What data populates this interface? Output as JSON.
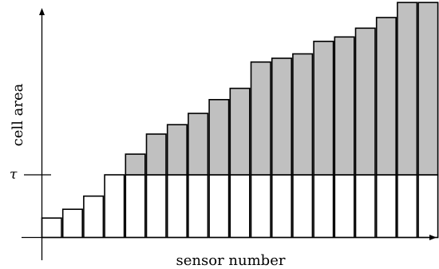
{
  "chart_data": {
    "type": "bar",
    "xlabel": "sensor number",
    "ylabel": "cell area",
    "threshold_label": "τ",
    "threshold": 1.0,
    "values": [
      0.31,
      0.45,
      0.66,
      1.0,
      1.33,
      1.65,
      1.8,
      1.98,
      2.2,
      2.38,
      2.8,
      2.86,
      2.93,
      3.13,
      3.2,
      3.34,
      3.51,
      3.75,
      3.75
    ],
    "colors": {
      "below_threshold_fill": "#ffffff",
      "above_threshold_fill": "#c0c0c0",
      "stroke": "#000000"
    }
  }
}
